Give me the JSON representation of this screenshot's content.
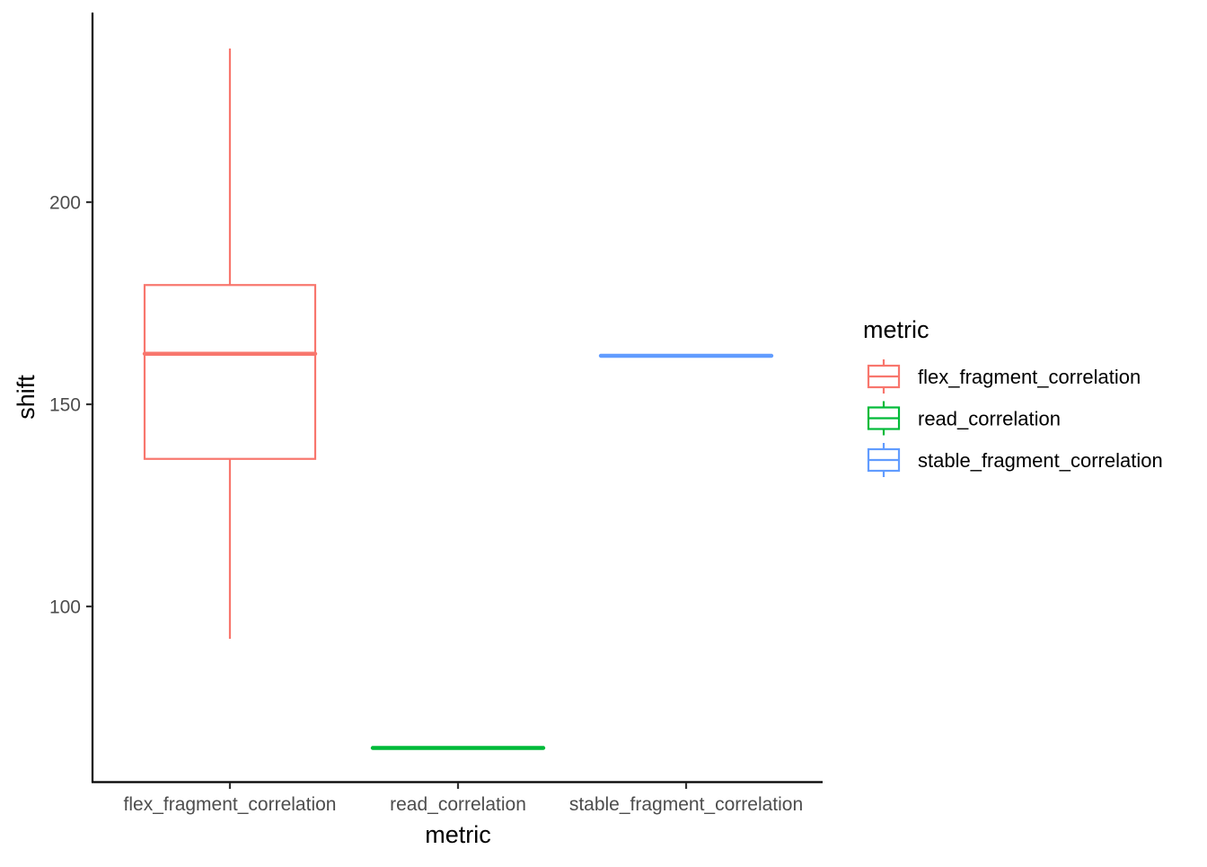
{
  "chart_data": {
    "type": "boxplot",
    "xlabel": "metric",
    "ylabel": "shift",
    "categories": [
      "flex_fragment_correlation",
      "read_correlation",
      "stable_fragment_correlation"
    ],
    "y_ticks": [
      100,
      150,
      200
    ],
    "ylim": [
      57,
      247
    ],
    "grid": false,
    "legend": {
      "title": "metric",
      "position": "right",
      "entries": [
        "flex_fragment_correlation",
        "read_correlation",
        "stable_fragment_correlation"
      ]
    },
    "series": [
      {
        "name": "flex_fragment_correlation",
        "color": "#F8766D",
        "min": 92,
        "q1": 136.5,
        "median": 162.5,
        "q3": 179.5,
        "max": 238
      },
      {
        "name": "read_correlation",
        "color": "#00BA38",
        "min": 65,
        "q1": 65,
        "median": 65,
        "q3": 65,
        "max": 65
      },
      {
        "name": "stable_fragment_correlation",
        "color": "#619CFF",
        "min": 162,
        "q1": 162,
        "median": 162,
        "q3": 162,
        "max": 162
      }
    ]
  }
}
